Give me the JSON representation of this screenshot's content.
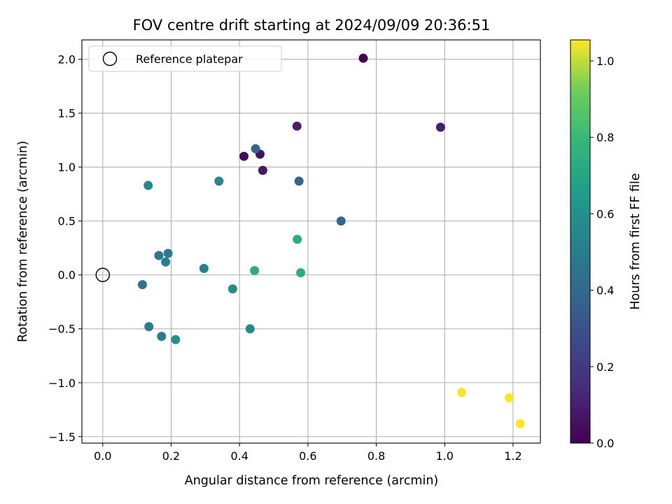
{
  "chart_data": {
    "type": "scatter",
    "title": "FOV centre drift starting at 2024/09/09 20:36:51",
    "xlabel": "Angular distance from reference (arcmin)",
    "ylabel": "Rotation from reference (arcmin)",
    "xlim": [
      -0.061,
      1.28
    ],
    "ylim": [
      -1.56,
      2.18
    ],
    "xticks": [
      "0.0",
      "0.2",
      "0.4",
      "0.6",
      "0.8",
      "1.0",
      "1.2"
    ],
    "yticks": [
      "−1.5",
      "−1.0",
      "−0.5",
      "0.0",
      "0.5",
      "1.0",
      "1.5",
      "2.0"
    ],
    "grid": true,
    "legend": {
      "position": "upper-left",
      "entries": [
        "Reference platepar"
      ]
    },
    "reference_point": {
      "x": 0.0,
      "y": 0.0,
      "marker": "hollow-circle"
    },
    "colorbar": {
      "label": "Hours from first FF file",
      "range": [
        0.0,
        1.055
      ],
      "ticks": [
        "0.0",
        "0.2",
        "0.4",
        "0.6",
        "0.8",
        "1.0"
      ],
      "colormap": "viridis"
    },
    "points": [
      {
        "x": 0.762,
        "y": 2.01,
        "c": 0.0
      },
      {
        "x": 0.413,
        "y": 1.1,
        "c": 0.02
      },
      {
        "x": 0.46,
        "y": 1.12,
        "c": 0.05
      },
      {
        "x": 0.468,
        "y": 0.97,
        "c": 0.08
      },
      {
        "x": 0.568,
        "y": 1.38,
        "c": 0.1
      },
      {
        "x": 0.988,
        "y": 1.37,
        "c": 0.1
      },
      {
        "x": 0.447,
        "y": 1.17,
        "c": 0.38
      },
      {
        "x": 0.574,
        "y": 0.87,
        "c": 0.38
      },
      {
        "x": 0.697,
        "y": 0.5,
        "c": 0.4
      },
      {
        "x": 0.116,
        "y": -0.09,
        "c": 0.46
      },
      {
        "x": 0.164,
        "y": 0.18,
        "c": 0.48
      },
      {
        "x": 0.191,
        "y": 0.2,
        "c": 0.49
      },
      {
        "x": 0.184,
        "y": 0.12,
        "c": 0.5
      },
      {
        "x": 0.135,
        "y": -0.48,
        "c": 0.5
      },
      {
        "x": 0.172,
        "y": -0.57,
        "c": 0.51
      },
      {
        "x": 0.296,
        "y": 0.06,
        "c": 0.53
      },
      {
        "x": 0.34,
        "y": 0.87,
        "c": 0.55
      },
      {
        "x": 0.133,
        "y": 0.83,
        "c": 0.56
      },
      {
        "x": 0.431,
        "y": -0.5,
        "c": 0.56
      },
      {
        "x": 0.38,
        "y": -0.13,
        "c": 0.58
      },
      {
        "x": 0.213,
        "y": -0.6,
        "c": 0.6
      },
      {
        "x": 0.444,
        "y": 0.04,
        "c": 0.74
      },
      {
        "x": 0.569,
        "y": 0.33,
        "c": 0.74
      },
      {
        "x": 0.579,
        "y": 0.02,
        "c": 0.74
      },
      {
        "x": 1.05,
        "y": -1.09,
        "c": 1.05
      },
      {
        "x": 1.189,
        "y": -1.14,
        "c": 1.05
      },
      {
        "x": 1.221,
        "y": -1.38,
        "c": 1.05
      }
    ]
  }
}
